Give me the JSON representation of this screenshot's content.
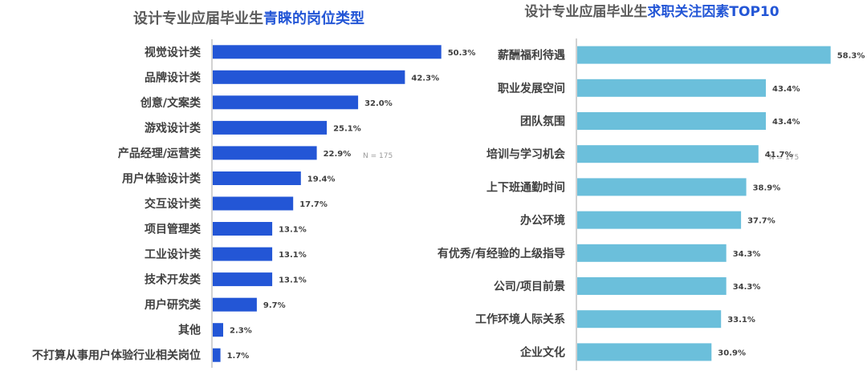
{
  "charts": [
    {
      "title_prefix": "设计专业应届毕业生",
      "title_highlight": "青睐的岗位类型",
      "note": "N = 175",
      "bar_color": "#2356d6",
      "highlight_color": "#2356d6"
    },
    {
      "title_prefix": "设计专业应届毕业生",
      "title_highlight": "求职关注因素TOP10",
      "note": "N = 175",
      "bar_color": "#6bbfdb",
      "highlight_color": "#2356d6"
    }
  ],
  "chart_data": [
    {
      "type": "bar",
      "orientation": "horizontal",
      "title": "设计专业应届毕业生青睐的岗位类型",
      "categories": [
        "视觉设计类",
        "品牌设计类",
        "创意/文案类",
        "游戏设计类",
        "产品经理/运营类",
        "用户体验设计类",
        "交互设计类",
        "项目管理类",
        "工业设计类",
        "技术开发类",
        "用户研究类",
        "其他",
        "不打算从事用户体验行业相关岗位"
      ],
      "values": [
        50.3,
        42.3,
        32.0,
        25.1,
        22.9,
        19.4,
        17.7,
        13.1,
        13.1,
        13.1,
        9.7,
        2.3,
        1.7
      ],
      "value_labels": [
        "50.3%",
        "42.3%",
        "32.0%",
        "25.1%",
        "22.9%",
        "19.4%",
        "17.7%",
        "13.1%",
        "13.1%",
        "13.1%",
        "9.7%",
        "2.3%",
        "1.7%"
      ],
      "unit": "%",
      "xlim": [
        0,
        60
      ],
      "grid": false,
      "legend": "none"
    },
    {
      "type": "bar",
      "orientation": "horizontal",
      "title": "设计专业应届毕业生求职关注因素TOP10",
      "categories": [
        "薪酬福利待遇",
        "职业发展空间",
        "团队氛围",
        "培训与学习机会",
        "上下班通勤时间",
        "办公环境",
        "有优秀/有经验的上级指导",
        "公司/项目前景",
        "工作环境人际关系",
        "企业文化"
      ],
      "values": [
        58.3,
        43.4,
        43.4,
        41.7,
        38.9,
        37.7,
        34.3,
        34.3,
        33.1,
        30.9
      ],
      "value_labels": [
        "58.3%",
        "43.4%",
        "43.4%",
        "41.7%",
        "38.9%",
        "37.7%",
        "34.3%",
        "34.3%",
        "33.1%",
        "30.9%"
      ],
      "unit": "%",
      "xlim": [
        0,
        60
      ],
      "grid": false,
      "legend": "none"
    }
  ]
}
